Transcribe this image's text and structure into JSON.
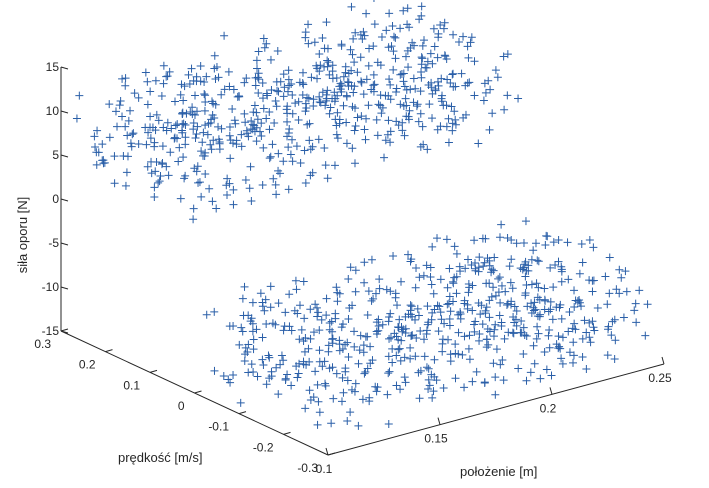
{
  "chart_data": {
    "type": "scatter",
    "projection": "3d",
    "marker": "+",
    "marker_color": "#2a5fa8",
    "title": "",
    "xlabel": "położenie [m]",
    "ylabel": "prędkość [m/s]",
    "zlabel": "siła oporu [N]",
    "xlim": [
      0.1,
      0.25
    ],
    "ylim": [
      -0.3,
      0.3
    ],
    "zlim": [
      -15,
      15
    ],
    "xticks": [
      "0.1",
      "0.15",
      "0.2",
      "0.25"
    ],
    "yticks": [
      "-0.3",
      "-0.2",
      "-0.1",
      "0",
      "0.1",
      "0.2",
      "0.3"
    ],
    "zticks": [
      "-15",
      "-10",
      "-5",
      "0",
      "5",
      "10",
      "15"
    ],
    "grid": false,
    "legend": "none",
    "series": [
      {
        "description_of_clusters": "",
        "clusters": [
          {
            "velocity_range": [
              0.0,
              0.3
            ],
            "position_range": [
              0.1,
              0.25
            ],
            "force_range": [
              4,
              14
            ],
            "approx_points": 600
          },
          {
            "velocity_range": [
              -0.3,
              0.0
            ],
            "position_range": [
              0.1,
              0.25
            ],
            "force_range": [
              -14,
              -4
            ],
            "approx_points": 600
          }
        ]
      }
    ]
  }
}
